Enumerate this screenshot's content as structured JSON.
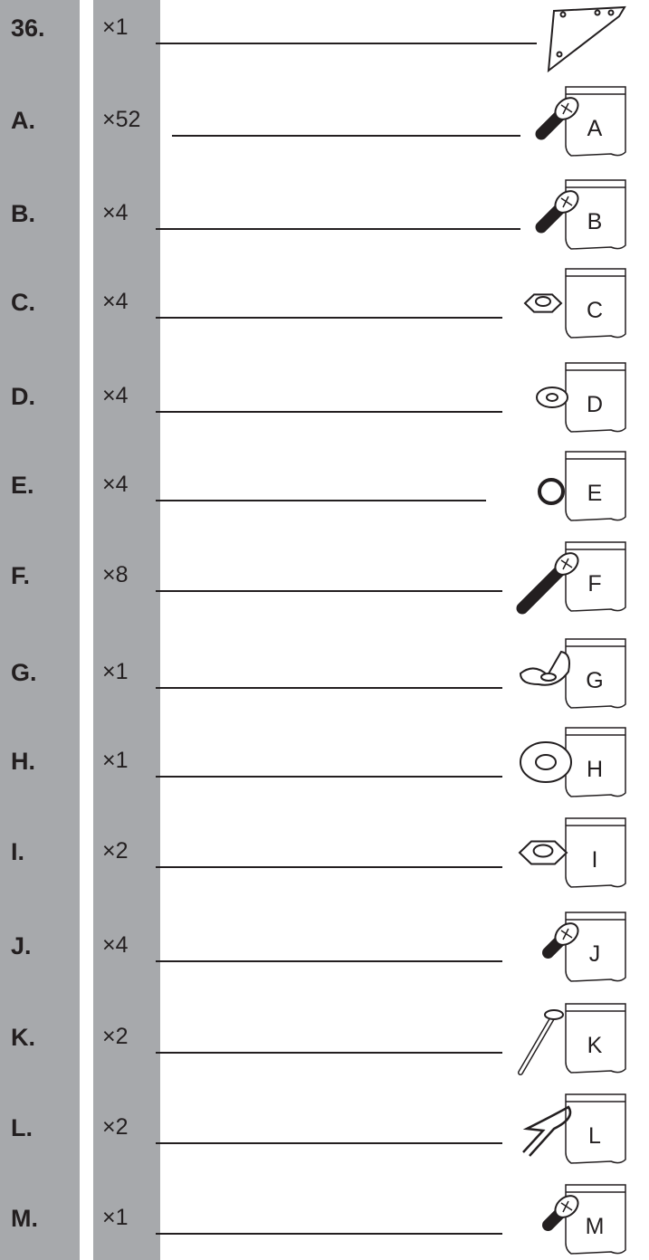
{
  "items": [
    {
      "label": "36.",
      "quantity": "×1"
    },
    {
      "label": "A.",
      "quantity": "×52",
      "bag": "A"
    },
    {
      "label": "B.",
      "quantity": "×4",
      "bag": "B"
    },
    {
      "label": "C.",
      "quantity": "×4",
      "bag": "C"
    },
    {
      "label": "D.",
      "quantity": "×4",
      "bag": "D"
    },
    {
      "label": "E.",
      "quantity": "×4",
      "bag": "E"
    },
    {
      "label": "F.",
      "quantity": "×8",
      "bag": "F"
    },
    {
      "label": "G.",
      "quantity": "×1",
      "bag": "G"
    },
    {
      "label": "H.",
      "quantity": "×1",
      "bag": "H"
    },
    {
      "label": "I.",
      "quantity": "×2",
      "bag": "I"
    },
    {
      "label": "J.",
      "quantity": "×4",
      "bag": "J"
    },
    {
      "label": "K.",
      "quantity": "×2",
      "bag": "K"
    },
    {
      "label": "L.",
      "quantity": "×2",
      "bag": "L"
    },
    {
      "label": "M.",
      "quantity": "×1",
      "bag": "M"
    }
  ]
}
